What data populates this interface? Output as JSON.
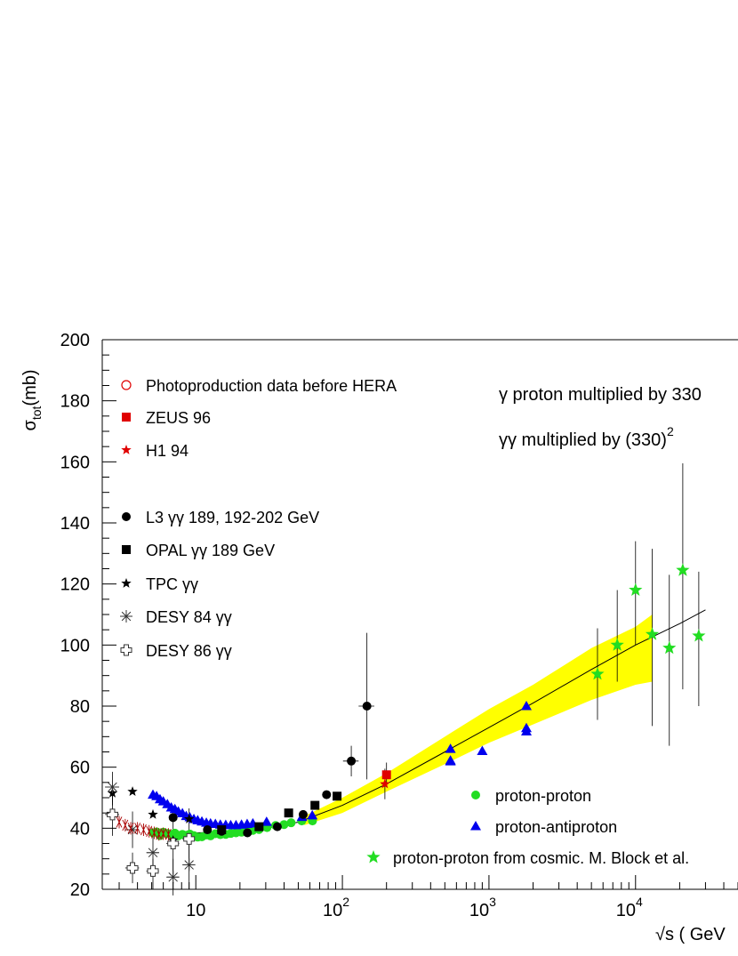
{
  "chart_data": {
    "type": "scatter",
    "title": "",
    "ylabel_main": "σ",
    "ylabel_sub": "tot",
    "ylabel_unit": "(mb)",
    "xlabel": "√s ( GeV",
    "xscale": "log",
    "xlim": [
      2.3,
      50000
    ],
    "ylim": [
      20,
      200
    ],
    "x_ticks": [
      {
        "value": 10,
        "base": "10",
        "exp": ""
      },
      {
        "value": 100,
        "base": "10",
        "exp": "2"
      },
      {
        "value": 1000,
        "base": "10",
        "exp": "3"
      },
      {
        "value": 10000,
        "base": "10",
        "exp": "4"
      }
    ],
    "y_ticks": [
      20,
      40,
      60,
      80,
      100,
      120,
      140,
      160,
      180,
      200
    ],
    "grid": false,
    "legend_left": [
      {
        "label": "Photoproduction data before HERA",
        "marker": "open-circle",
        "color": "#e00000"
      },
      {
        "label": "ZEUS 96",
        "marker": "square",
        "color": "#e00000"
      },
      {
        "label": "H1 94",
        "marker": "star",
        "color": "#e00000"
      },
      {
        "label": "L3 γγ  189, 192-202 GeV",
        "marker": "circle",
        "color": "#000000"
      },
      {
        "label": "OPAL γγ 189 GeV",
        "marker": "square",
        "color": "#000000"
      },
      {
        "label": "TPC γγ",
        "marker": "star",
        "color": "#000000"
      },
      {
        "label": "DESY 84 γγ",
        "marker": "asterisk",
        "color": "#333333"
      },
      {
        "label": "DESY 86 γγ",
        "marker": "open-cross",
        "color": "#333333"
      }
    ],
    "legend_bottom": [
      {
        "label": "proton-proton",
        "marker": "circle",
        "color": "#22dd22"
      },
      {
        "label": "proton-antiproton",
        "marker": "triangle",
        "color": "#0000ee"
      },
      {
        "label": "proton-proton from cosmic. M. Block et al.",
        "marker": "star",
        "color": "#22dd22"
      }
    ],
    "annotations": {
      "line1": "γ proton multiplied by 330",
      "line2_main": "γγ multiplied by (330)",
      "line2_exp": "2"
    },
    "colors": {
      "band": "#ffff00",
      "pp": "#22dd22",
      "ppbar": "#0000ee",
      "red": "#e00000",
      "black": "#000000"
    },
    "series": [
      {
        "name": "proton-proton",
        "marker": "circle",
        "color": "#22dd22",
        "points": [
          [
            5.1,
            38.5
          ],
          [
            5.4,
            38.8
          ],
          [
            5.7,
            37.6
          ],
          [
            6.0,
            38.7
          ],
          [
            6.4,
            38.3
          ],
          [
            6.8,
            37.9
          ],
          [
            7.2,
            38.4
          ],
          [
            7.6,
            37.5
          ],
          [
            8.1,
            38.0
          ],
          [
            8.6,
            37.7
          ],
          [
            9.1,
            38.1
          ],
          [
            9.7,
            37.6
          ],
          [
            10.3,
            37.1
          ],
          [
            11.0,
            37.2
          ],
          [
            11.8,
            37.8
          ],
          [
            12.6,
            37.5
          ],
          [
            13.6,
            38.2
          ],
          [
            14.7,
            37.9
          ],
          [
            16.0,
            38.0
          ],
          [
            17.3,
            38.3
          ],
          [
            18.8,
            38.5
          ],
          [
            20.5,
            38.7
          ],
          [
            22.4,
            39.0
          ],
          [
            24.5,
            39.3
          ],
          [
            27.0,
            39.6
          ],
          [
            30.6,
            40.2
          ],
          [
            35.0,
            40.9
          ],
          [
            40.0,
            41.2
          ],
          [
            44.7,
            41.8
          ],
          [
            52.8,
            42.4
          ],
          [
            62.5,
            42.4
          ]
        ]
      },
      {
        "name": "proton-antiproton",
        "marker": "triangle",
        "color": "#0000ee",
        "points": [
          [
            5.1,
            51.0
          ],
          [
            5.4,
            50.5
          ],
          [
            5.7,
            49.5
          ],
          [
            6.0,
            48.8
          ],
          [
            6.4,
            47.9
          ],
          [
            6.8,
            46.8
          ],
          [
            7.2,
            46.3
          ],
          [
            7.6,
            45.5
          ],
          [
            8.1,
            44.9
          ],
          [
            8.6,
            44.0
          ],
          [
            9.1,
            43.6
          ],
          [
            9.7,
            43.0
          ],
          [
            10.3,
            42.6
          ],
          [
            11.0,
            42.2
          ],
          [
            11.8,
            41.8
          ],
          [
            12.6,
            41.6
          ],
          [
            13.6,
            41.4
          ],
          [
            14.7,
            41.2
          ],
          [
            16.0,
            41.1
          ],
          [
            17.3,
            41.0
          ],
          [
            18.8,
            41.0
          ],
          [
            20.5,
            41.2
          ],
          [
            22.4,
            41.4
          ],
          [
            24.5,
            41.6
          ],
          [
            30.4,
            42.1
          ],
          [
            53.0,
            43.7
          ],
          [
            62.3,
            44.2
          ],
          [
            546,
            61.9
          ],
          [
            546,
            62.2
          ],
          [
            546,
            66.0
          ],
          [
            900,
            65.3
          ],
          [
            1800,
            71.7
          ],
          [
            1800,
            72.8
          ],
          [
            1800,
            80.0
          ]
        ]
      },
      {
        "name": "L3 γγ  189, 192-202 GeV",
        "marker": "circle",
        "color": "#000000",
        "points": [
          [
            7.0,
            43.5
          ],
          [
            12.0,
            39.5
          ],
          [
            15.0,
            39.0
          ],
          [
            22.5,
            38.5
          ],
          [
            36.0,
            40.5
          ],
          [
            54.0,
            44.5
          ],
          [
            78.0,
            51.0
          ],
          [
            115.0,
            62.0
          ],
          [
            147.0,
            80.0
          ]
        ],
        "yerr": [
          null,
          null,
          null,
          null,
          null,
          null,
          null,
          [
            5,
            5
          ],
          [
            24,
            24
          ]
        ],
        "xerr": [
          null,
          null,
          null,
          null,
          null,
          null,
          null,
          [
            14,
            14
          ],
          [
            18,
            18
          ]
        ]
      },
      {
        "name": "OPAL γγ 189 GeV",
        "marker": "square",
        "color": "#000000",
        "points": [
          [
            15.0,
            39.5
          ],
          [
            27.0,
            40.5
          ],
          [
            43.0,
            45.0
          ],
          [
            65.0,
            47.5
          ],
          [
            92.0,
            50.5
          ]
        ]
      },
      {
        "name": "TPC γγ",
        "marker": "star",
        "color": "#000000",
        "points": [
          [
            2.7,
            51.5
          ],
          [
            3.7,
            52.0
          ],
          [
            5.1,
            44.5
          ],
          [
            7.0,
            36.0
          ],
          [
            9.0,
            43.0
          ]
        ],
        "yerr": [
          [
            4,
            4
          ],
          null,
          null,
          null,
          null
        ]
      },
      {
        "name": "DESY 84 γγ",
        "marker": "asterisk",
        "color": "#333333",
        "points": [
          [
            2.7,
            53.5
          ],
          [
            3.7,
            39.5
          ],
          [
            5.1,
            32.0
          ],
          [
            7.0,
            24.0
          ],
          [
            9.0,
            28.0
          ]
        ],
        "yerr": [
          [
            5,
            5
          ],
          [
            6,
            6
          ],
          [
            7,
            7
          ],
          [
            6,
            6
          ],
          [
            8,
            8
          ]
        ],
        "xerr": [
          [
            0.3,
            0.3
          ],
          [
            0.4,
            0.4
          ],
          [
            0.5,
            0.5
          ],
          [
            0.7,
            0.7
          ],
          [
            0.9,
            0.9
          ]
        ]
      },
      {
        "name": "DESY 86 γγ",
        "marker": "open-cross",
        "color": "#333333",
        "points": [
          [
            2.7,
            44.5
          ],
          [
            3.7,
            27.0
          ],
          [
            5.1,
            26.0
          ],
          [
            7.0,
            35.0
          ],
          [
            9.0,
            36.5
          ]
        ],
        "yerr": [
          [
            7,
            7
          ],
          [
            5,
            5
          ],
          [
            6,
            6
          ],
          [
            10,
            10
          ],
          [
            10,
            10
          ]
        ],
        "xerr": [
          [
            0.3,
            0.3
          ],
          [
            0.4,
            0.4
          ],
          [
            0.5,
            0.5
          ],
          [
            0.7,
            0.7
          ],
          [
            0.9,
            0.9
          ]
        ]
      },
      {
        "name": "Photoproduction data before HERA",
        "marker": "hatch",
        "color": "#aa0000",
        "points": [
          [
            3.0,
            42.0
          ],
          [
            3.3,
            41.0
          ],
          [
            3.6,
            40.0
          ],
          [
            4.0,
            40.0
          ],
          [
            4.4,
            39.5
          ],
          [
            4.8,
            39.0
          ],
          [
            5.2,
            38.5
          ],
          [
            5.6,
            38.0
          ],
          [
            6.0,
            38.2
          ],
          [
            6.5,
            38.0
          ]
        ]
      },
      {
        "name": "ZEUS 96",
        "marker": "square",
        "color": "#e00000",
        "points": [
          [
            200.0,
            57.5
          ]
        ],
        "yerr": [
          [
            4,
            4
          ]
        ],
        "xerr": [
          [
            10,
            10
          ]
        ]
      },
      {
        "name": "H1 94",
        "marker": "star",
        "color": "#e00000",
        "points": [
          [
            195.0,
            54.5
          ]
        ],
        "yerr": [
          [
            5,
            5
          ]
        ],
        "xerr": [
          [
            10,
            10
          ]
        ]
      },
      {
        "name": "proton-proton from cosmic. M. Block et al.",
        "marker": "star",
        "color": "#22dd22",
        "points": [
          [
            5500,
            90.5
          ],
          [
            7500,
            100.0
          ],
          [
            10000,
            118.0
          ],
          [
            13000,
            103.5
          ],
          [
            17000,
            99.0
          ],
          [
            21000,
            124.5
          ],
          [
            27000,
            103.0
          ]
        ],
        "yerr": [
          [
            15,
            15
          ],
          [
            12,
            18
          ],
          [
            18,
            16
          ],
          [
            30,
            28
          ],
          [
            32,
            24
          ],
          [
            39,
            35
          ],
          [
            23,
            21
          ]
        ]
      }
    ],
    "fit_curve": [
      [
        5.0,
        39.5
      ],
      [
        10.0,
        38.5
      ],
      [
        15.0,
        38.7
      ],
      [
        20.0,
        39.0
      ],
      [
        30.0,
        40.0
      ],
      [
        50.0,
        42.0
      ],
      [
        100.0,
        47.5
      ],
      [
        200.0,
        54.5
      ],
      [
        500.0,
        65.0
      ],
      [
        1000.0,
        73.0
      ],
      [
        2000.0,
        81.0
      ],
      [
        5000.0,
        92.0
      ],
      [
        10000.0,
        100.0
      ],
      [
        20000.0,
        107.0
      ],
      [
        30000.0,
        111.5
      ]
    ],
    "band": {
      "upper": [
        [
          55,
          44
        ],
        [
          100,
          50
        ],
        [
          200,
          58
        ],
        [
          500,
          70
        ],
        [
          1000,
          79
        ],
        [
          2000,
          87
        ],
        [
          5000,
          99
        ],
        [
          10000,
          106
        ],
        [
          13000,
          110
        ]
      ],
      "lower": [
        [
          55,
          41
        ],
        [
          100,
          45
        ],
        [
          200,
          52
        ],
        [
          500,
          61
        ],
        [
          1000,
          68
        ],
        [
          2000,
          74
        ],
        [
          5000,
          82
        ],
        [
          10000,
          87
        ],
        [
          13000,
          88
        ]
      ]
    }
  }
}
